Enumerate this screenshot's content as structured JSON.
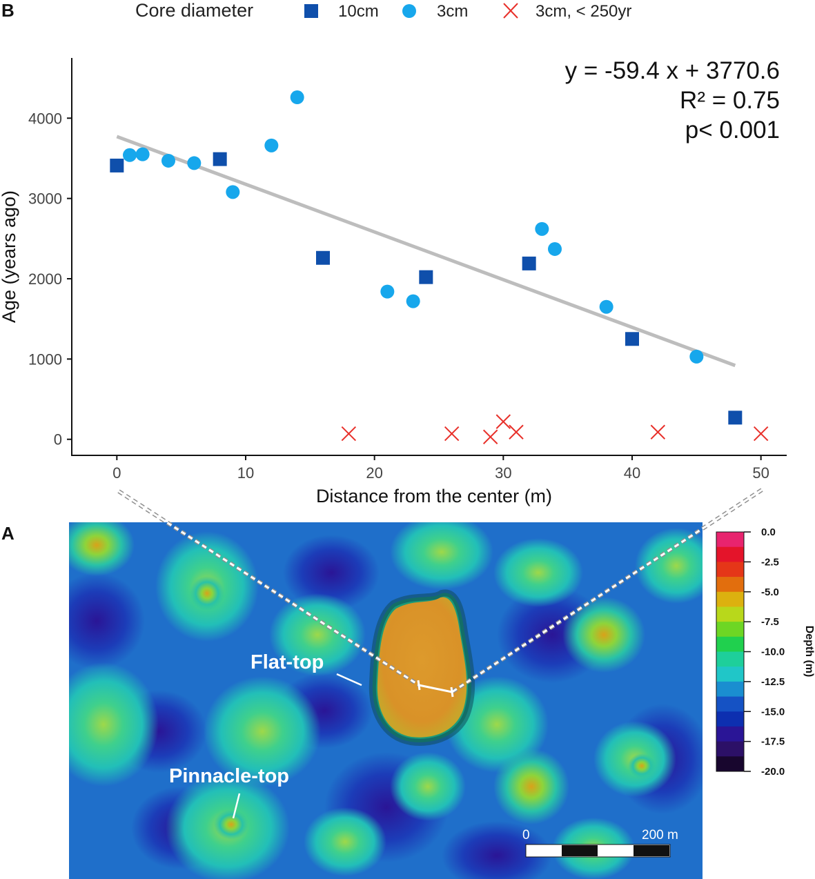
{
  "panels": {
    "top_letter": "B",
    "bottom_letter": "A"
  },
  "legend": {
    "title": "Core diameter",
    "items": [
      {
        "label": "10cm",
        "marker": "square",
        "color": "#0f4fab"
      },
      {
        "label": "3cm",
        "marker": "circle",
        "color": "#17a7ec"
      },
      {
        "label": "3cm, < 250yr",
        "marker": "cross",
        "color": "#e8302a"
      }
    ]
  },
  "regression": {
    "equation": "y = -59.4 x + 3770.6",
    "r2": "R² = 0.75",
    "p": "p< 0.001",
    "slope": -59.4,
    "intercept": 3770.6,
    "x_range": [
      0,
      48
    ],
    "color": "#bdbdbd"
  },
  "chart_data": {
    "type": "scatter",
    "title": "",
    "xlabel": "Distance from the center (m)",
    "ylabel": "Age (years ago)",
    "xlim": [
      -3.5,
      52
    ],
    "ylim": [
      -200,
      4750
    ],
    "xticks": [
      0,
      10,
      20,
      30,
      40,
      50
    ],
    "yticks": [
      0,
      1000,
      2000,
      3000,
      4000
    ],
    "series": [
      {
        "name": "10cm",
        "marker": "square",
        "x": [
          0,
          8,
          16,
          24,
          32,
          40,
          48
        ],
        "y": [
          3410,
          3490,
          2260,
          2020,
          2190,
          1250,
          270
        ]
      },
      {
        "name": "3cm",
        "marker": "circle",
        "x": [
          1,
          2,
          4,
          6,
          9,
          12,
          14,
          21,
          23,
          33,
          34,
          38,
          45
        ],
        "y": [
          3540,
          3550,
          3470,
          3440,
          3080,
          3660,
          4260,
          1840,
          1720,
          2620,
          2370,
          1650,
          1030
        ]
      },
      {
        "name": "3cm, < 250yr",
        "marker": "cross",
        "x": [
          18,
          26,
          29,
          30,
          31,
          42,
          50
        ],
        "y": [
          70,
          70,
          30,
          220,
          90,
          90,
          70
        ]
      }
    ]
  },
  "map": {
    "labels": {
      "flat_top": "Flat-top",
      "pinnacle_top": "Pinnacle-top"
    },
    "colorbar": {
      "title": "Depth (m)",
      "ticks": [
        "0.0",
        "-2.5",
        "-5.0",
        "-7.5",
        "-10.0",
        "-12.5",
        "-15.0",
        "-17.5",
        "-20.0"
      ],
      "colors": [
        "#e8246e",
        "#e4142a",
        "#e53618",
        "#e26e0d",
        "#dcb10f",
        "#b8d81b",
        "#6dd624",
        "#20d04e",
        "#1ecf9b",
        "#20c6c8",
        "#1a8ed0",
        "#1552c4",
        "#0d2fb0",
        "#2a1596",
        "#2c1067",
        "#18062e"
      ]
    },
    "scale_bar": {
      "start_label": "0",
      "end_label": "200 m"
    }
  }
}
